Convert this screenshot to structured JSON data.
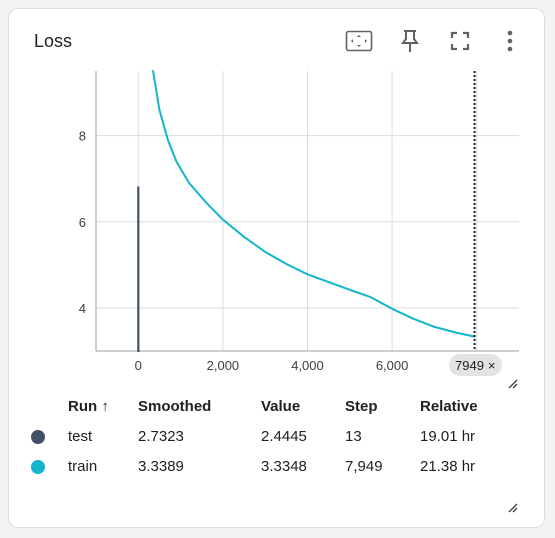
{
  "card": {
    "title": "Loss",
    "toolbar": {
      "fit_icon": "fit-to-data-icon",
      "pin_icon": "pin-icon",
      "fullscreen_icon": "fullscreen-icon",
      "more_icon": "more-vert-icon"
    }
  },
  "chart_data": {
    "type": "line",
    "title": "",
    "xlabel": "",
    "ylabel": "",
    "x_ticks": [
      "0",
      "2,000",
      "4,000",
      "6,000"
    ],
    "y_ticks": [
      "4",
      "6",
      "8"
    ],
    "xlim": [
      -1000,
      9000
    ],
    "ylim": [
      3.0,
      9.5
    ],
    "grid": true,
    "series": [
      {
        "name": "test",
        "color": "#425066",
        "x": [
          0,
          0,
          0,
          13
        ],
        "y": [
          6.8,
          4.6,
          3.0,
          2.4445
        ]
      },
      {
        "name": "train",
        "color": "#12b5cb",
        "x": [
          350,
          500,
          700,
          900,
          1200,
          1600,
          2000,
          2500,
          3000,
          3500,
          4000,
          4500,
          5000,
          5500,
          6000,
          6500,
          7000,
          7500,
          7949
        ],
        "y": [
          9.5,
          8.6,
          7.9,
          7.4,
          6.9,
          6.45,
          6.05,
          5.65,
          5.3,
          5.02,
          4.78,
          4.6,
          4.42,
          4.25,
          3.98,
          3.75,
          3.56,
          3.43,
          3.3348
        ]
      }
    ],
    "cursor_step": 7949,
    "cursor_label": "7949",
    "cursor_close": "×"
  },
  "table": {
    "headers": {
      "run": "Run ↑",
      "smoothed": "Smoothed",
      "value": "Value",
      "step": "Step",
      "relative": "Relative"
    },
    "rows": [
      {
        "color": "#425066",
        "run": "test",
        "smoothed": "2.7323",
        "value": "2.4445",
        "step": "13",
        "relative": "19.01 hr"
      },
      {
        "color": "#12b5cb",
        "run": "train",
        "smoothed": "3.3389",
        "value": "3.3348",
        "step": "7,949",
        "relative": "21.38 hr"
      }
    ]
  }
}
